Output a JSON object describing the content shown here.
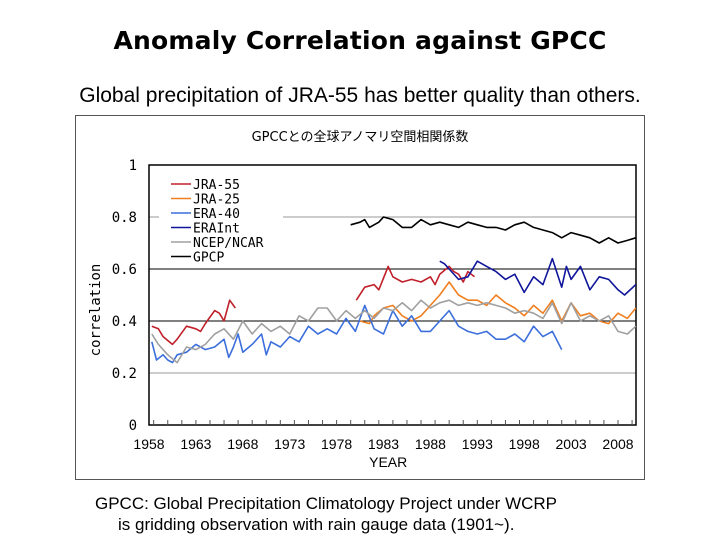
{
  "slide": {
    "title": "Anomaly Correlation against GPCC",
    "subtitle": "Global precipitation of JRA-55 has better quality than others.",
    "footer_line1": "GPCC: Global Precipitation Climatology Project under WCRP",
    "footer_line2": "is gridding observation with rain gauge data (1901~)."
  },
  "chart_data": {
    "type": "line",
    "title": "GPCCとの全球アノマリ空間相関係数",
    "xlabel": "YEAR",
    "ylabel": "correlation",
    "xlim": [
      1958,
      2010
    ],
    "ylim": [
      0,
      1
    ],
    "xticks": [
      "1958",
      "1963",
      "1968",
      "1973",
      "1978",
      "1983",
      "1988",
      "1993",
      "1998",
      "2003",
      "2008"
    ],
    "yticks": [
      "0",
      "0.2",
      "0.4",
      "0.6",
      "0.8",
      "1"
    ],
    "grid": "horizontal",
    "legend_position": "top-left",
    "series": [
      {
        "name": "JRA-55",
        "color": "#c0202a",
        "segments": [
          [
            [
              1958.3,
              0.38
            ],
            [
              1959,
              0.37
            ],
            [
              1959.5,
              0.34
            ],
            [
              1960.5,
              0.31
            ],
            [
              1961,
              0.33
            ],
            [
              1962,
              0.38
            ],
            [
              1963,
              0.37
            ],
            [
              1963.5,
              0.36
            ],
            [
              1964,
              0.39
            ],
            [
              1965,
              0.44
            ],
            [
              1965.5,
              0.43
            ],
            [
              1966,
              0.4
            ],
            [
              1966.6,
              0.48
            ],
            [
              1967.2,
              0.45
            ]
          ],
          [
            [
              1980.1,
              0.48
            ],
            [
              1981,
              0.53
            ],
            [
              1982,
              0.54
            ],
            [
              1982.5,
              0.52
            ],
            [
              1983.5,
              0.61
            ],
            [
              1984,
              0.57
            ],
            [
              1985,
              0.55
            ],
            [
              1986,
              0.56
            ],
            [
              1987,
              0.55
            ],
            [
              1988,
              0.57
            ],
            [
              1988.5,
              0.54
            ],
            [
              1989,
              0.58
            ],
            [
              1990,
              0.61
            ],
            [
              1990.5,
              0.59
            ],
            [
              1991,
              0.58
            ],
            [
              1991.5,
              0.55
            ],
            [
              1992,
              0.59
            ],
            [
              1992.7,
              0.57
            ]
          ]
        ]
      },
      {
        "name": "JRA-25",
        "color": "#f07f20",
        "segments": [
          [
            [
              1980.5,
              0.4
            ],
            [
              1981.5,
              0.39
            ],
            [
              1982,
              0.42
            ],
            [
              1983,
              0.45
            ],
            [
              1984,
              0.46
            ],
            [
              1985,
              0.42
            ],
            [
              1986,
              0.4
            ],
            [
              1987,
              0.42
            ],
            [
              1988,
              0.46
            ],
            [
              1989,
              0.5
            ],
            [
              1990,
              0.55
            ],
            [
              1991,
              0.5
            ],
            [
              1992,
              0.48
            ],
            [
              1993,
              0.48
            ],
            [
              1994,
              0.46
            ],
            [
              1995,
              0.5
            ],
            [
              1996,
              0.47
            ],
            [
              1997,
              0.45
            ],
            [
              1998,
              0.42
            ],
            [
              1999,
              0.46
            ],
            [
              2000,
              0.43
            ],
            [
              2001,
              0.48
            ],
            [
              2002,
              0.4
            ],
            [
              2003,
              0.47
            ],
            [
              2004,
              0.42
            ],
            [
              2005,
              0.43
            ],
            [
              2006,
              0.4
            ],
            [
              2007,
              0.39
            ],
            [
              2008,
              0.43
            ],
            [
              2009,
              0.41
            ],
            [
              2009.9,
              0.45
            ]
          ]
        ]
      },
      {
        "name": "ERA-40",
        "color": "#3c6fdc",
        "segments": [
          [
            [
              1958.3,
              0.32
            ],
            [
              1958.8,
              0.25
            ],
            [
              1959.5,
              0.27
            ],
            [
              1960,
              0.25
            ],
            [
              1960.5,
              0.24
            ],
            [
              1961,
              0.27
            ],
            [
              1962,
              0.28
            ],
            [
              1963,
              0.31
            ],
            [
              1963.5,
              0.3
            ],
            [
              1964,
              0.29
            ],
            [
              1965,
              0.3
            ],
            [
              1966,
              0.33
            ],
            [
              1966.5,
              0.26
            ],
            [
              1967,
              0.3
            ],
            [
              1967.5,
              0.35
            ],
            [
              1968,
              0.28
            ],
            [
              1969,
              0.31
            ],
            [
              1970,
              0.35
            ],
            [
              1970.5,
              0.27
            ],
            [
              1971,
              0.32
            ],
            [
              1972,
              0.3
            ],
            [
              1973,
              0.34
            ],
            [
              1974,
              0.32
            ],
            [
              1975,
              0.38
            ],
            [
              1976,
              0.35
            ],
            [
              1977,
              0.37
            ],
            [
              1978,
              0.35
            ],
            [
              1979,
              0.41
            ],
            [
              1980,
              0.36
            ],
            [
              1981,
              0.46
            ],
            [
              1982,
              0.37
            ],
            [
              1983,
              0.35
            ],
            [
              1984,
              0.44
            ],
            [
              1985,
              0.38
            ],
            [
              1986,
              0.42
            ],
            [
              1987,
              0.36
            ],
            [
              1988,
              0.36
            ],
            [
              1989,
              0.4
            ],
            [
              1990,
              0.44
            ],
            [
              1991,
              0.38
            ],
            [
              1992,
              0.36
            ],
            [
              1993,
              0.35
            ],
            [
              1994,
              0.36
            ],
            [
              1995,
              0.33
            ],
            [
              1996,
              0.33
            ],
            [
              1997,
              0.35
            ],
            [
              1998,
              0.32
            ],
            [
              1999,
              0.38
            ],
            [
              2000,
              0.34
            ],
            [
              2001,
              0.36
            ],
            [
              2002,
              0.29
            ]
          ]
        ]
      },
      {
        "name": "ERAInt",
        "color": "#10169a",
        "segments": [
          [
            [
              1989,
              0.63
            ],
            [
              1989.5,
              0.62
            ],
            [
              1990,
              0.6
            ],
            [
              1991,
              0.56
            ],
            [
              1992,
              0.57
            ],
            [
              1992.5,
              0.6
            ],
            [
              1993,
              0.63
            ],
            [
              1994,
              0.61
            ],
            [
              1995,
              0.59
            ],
            [
              1996,
              0.56
            ],
            [
              1997,
              0.58
            ],
            [
              1998,
              0.51
            ],
            [
              1999,
              0.57
            ],
            [
              2000,
              0.54
            ],
            [
              2001,
              0.64
            ],
            [
              2002,
              0.53
            ],
            [
              2002.5,
              0.61
            ],
            [
              2003,
              0.56
            ],
            [
              2004,
              0.61
            ],
            [
              2005,
              0.52
            ],
            [
              2006,
              0.57
            ],
            [
              2007,
              0.56
            ],
            [
              2008,
              0.52
            ],
            [
              2008.7,
              0.5
            ],
            [
              2009.9,
              0.54
            ]
          ]
        ]
      },
      {
        "name": "NCEP/NCAR",
        "color": "#a0a0a0",
        "segments": [
          [
            [
              1958.3,
              0.35
            ],
            [
              1959,
              0.31
            ],
            [
              1960,
              0.27
            ],
            [
              1961,
              0.24
            ],
            [
              1962,
              0.3
            ],
            [
              1963,
              0.29
            ],
            [
              1964,
              0.31
            ],
            [
              1965,
              0.35
            ],
            [
              1966,
              0.37
            ],
            [
              1967,
              0.33
            ],
            [
              1968,
              0.4
            ],
            [
              1969,
              0.35
            ],
            [
              1970,
              0.39
            ],
            [
              1971,
              0.36
            ],
            [
              1972,
              0.38
            ],
            [
              1973,
              0.35
            ],
            [
              1974,
              0.42
            ],
            [
              1975,
              0.4
            ],
            [
              1976,
              0.45
            ],
            [
              1977,
              0.45
            ],
            [
              1978,
              0.4
            ],
            [
              1979,
              0.44
            ],
            [
              1980,
              0.41
            ],
            [
              1981,
              0.44
            ],
            [
              1982,
              0.41
            ],
            [
              1983,
              0.45
            ],
            [
              1984,
              0.44
            ],
            [
              1985,
              0.47
            ],
            [
              1986,
              0.44
            ],
            [
              1987,
              0.48
            ],
            [
              1988,
              0.45
            ],
            [
              1989,
              0.47
            ],
            [
              1990,
              0.48
            ],
            [
              1991,
              0.46
            ],
            [
              1992,
              0.47
            ],
            [
              1993,
              0.46
            ],
            [
              1994,
              0.47
            ],
            [
              1995,
              0.46
            ],
            [
              1996,
              0.45
            ],
            [
              1997,
              0.43
            ],
            [
              1998,
              0.44
            ],
            [
              1999,
              0.43
            ],
            [
              2000,
              0.41
            ],
            [
              2001,
              0.47
            ],
            [
              2002,
              0.39
            ],
            [
              2003,
              0.47
            ],
            [
              2004,
              0.4
            ],
            [
              2005,
              0.42
            ],
            [
              2006,
              0.4
            ],
            [
              2007,
              0.42
            ],
            [
              2008,
              0.36
            ],
            [
              2009,
              0.35
            ],
            [
              2009.9,
              0.38
            ]
          ]
        ]
      },
      {
        "name": "GPCP",
        "color": "#000000",
        "segments": [
          [
            [
              1979.5,
              0.77
            ],
            [
              1980.5,
              0.78
            ],
            [
              1981,
              0.79
            ],
            [
              1981.5,
              0.76
            ],
            [
              1982.5,
              0.78
            ],
            [
              1983,
              0.8
            ],
            [
              1984,
              0.79
            ],
            [
              1985,
              0.76
            ],
            [
              1986,
              0.76
            ],
            [
              1987,
              0.79
            ],
            [
              1988,
              0.77
            ],
            [
              1989,
              0.78
            ],
            [
              1990,
              0.77
            ],
            [
              1991,
              0.76
            ],
            [
              1992,
              0.78
            ],
            [
              1993,
              0.77
            ],
            [
              1994,
              0.76
            ],
            [
              1995,
              0.76
            ],
            [
              1996,
              0.75
            ],
            [
              1997,
              0.77
            ],
            [
              1998,
              0.78
            ],
            [
              1999,
              0.76
            ],
            [
              2000,
              0.75
            ],
            [
              2001,
              0.74
            ],
            [
              2002,
              0.72
            ],
            [
              2003,
              0.74
            ],
            [
              2004,
              0.73
            ],
            [
              2005,
              0.72
            ],
            [
              2006,
              0.7
            ],
            [
              2007,
              0.72
            ],
            [
              2008,
              0.7
            ],
            [
              2009,
              0.71
            ],
            [
              2009.9,
              0.72
            ]
          ]
        ]
      }
    ]
  }
}
